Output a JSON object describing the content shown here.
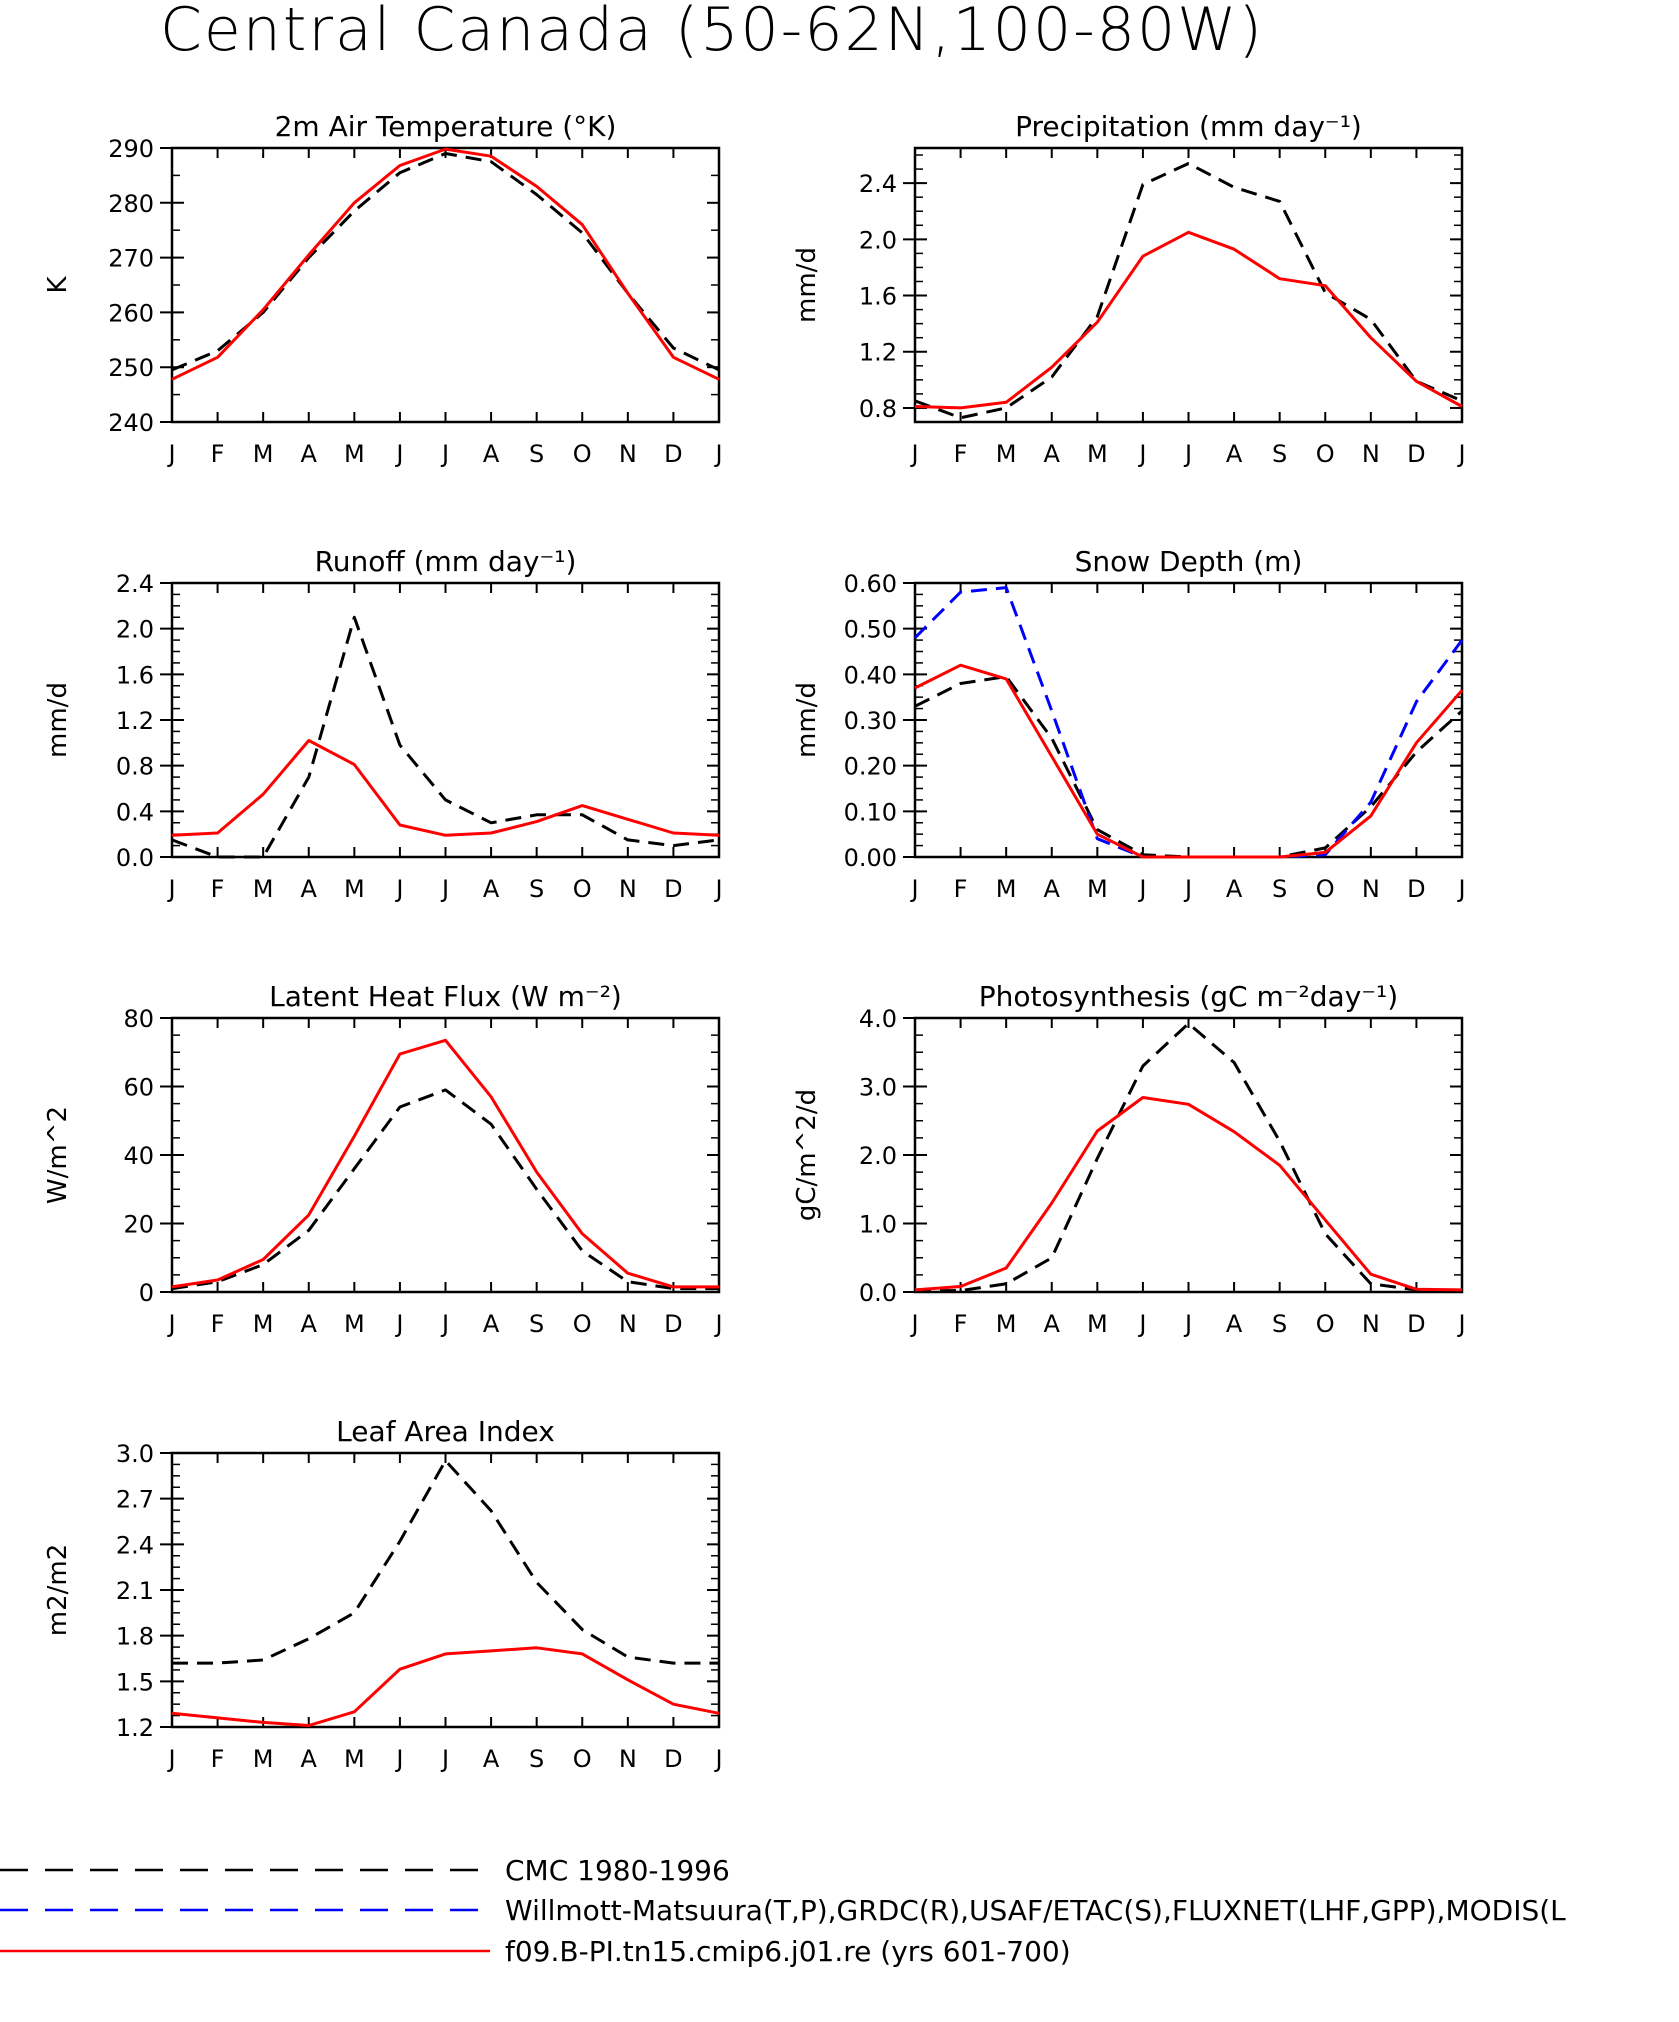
{
  "title": "Central Canada (50-62N,100-80W)",
  "colors": {
    "cmc": "#000000",
    "obs": "#0000ff",
    "model": "#ff0000"
  },
  "legend": [
    {
      "key": "cmc",
      "label": "CMC 1980-1996",
      "style": "dashed",
      "color": "#000000"
    },
    {
      "key": "obs",
      "label": "Willmott-Matsuura(T,P),GRDC(R),USAF/ETAC(S),FLUXNET(LHF,GPP),MODIS(L",
      "style": "dashed",
      "color": "#0000ff"
    },
    {
      "key": "model",
      "label": "f09.B-PI.tn15.cmip6.j01.re (yrs 601-700)",
      "style": "solid",
      "color": "#ff0000"
    }
  ],
  "chart_data": [
    {
      "type": "line",
      "title": "2m Air Temperature (°K)",
      "ylabel": "K",
      "categories": [
        "J",
        "F",
        "M",
        "A",
        "M",
        "J",
        "J",
        "A",
        "S",
        "O",
        "N",
        "D",
        "J"
      ],
      "ylim": [
        240,
        290
      ],
      "yticks": [
        "240",
        "250",
        "260",
        "270",
        "280",
        "290"
      ],
      "yminor": 5,
      "series": [
        {
          "name": "CMC 1980-1996",
          "key": "cmc",
          "values": [
            249.5,
            253.0,
            260.0,
            270.0,
            278.5,
            285.5,
            289.0,
            287.5,
            281.5,
            274.5,
            263.5,
            253.5,
            249.5
          ]
        },
        {
          "name": "f09.B-PI.tn15.cmip6.j01.re (yrs 601-700)",
          "key": "model",
          "values": [
            247.8,
            251.8,
            260.5,
            270.5,
            280.0,
            286.8,
            289.8,
            288.5,
            283.0,
            276.0,
            263.5,
            251.8,
            247.8
          ]
        }
      ]
    },
    {
      "type": "line",
      "title": "Precipitation (mm day⁻¹)",
      "ylabel": "mm/d",
      "categories": [
        "J",
        "F",
        "M",
        "A",
        "M",
        "J",
        "J",
        "A",
        "S",
        "O",
        "N",
        "D",
        "J"
      ],
      "ylim": [
        0.7,
        2.65
      ],
      "yticks": [
        "0.8",
        "1.2",
        "1.6",
        "2.0",
        "2.4"
      ],
      "yminor": 0.1,
      "series": [
        {
          "name": "CMC 1980-1996",
          "key": "cmc",
          "values": [
            0.85,
            0.73,
            0.8,
            1.02,
            1.45,
            2.39,
            2.54,
            2.37,
            2.27,
            1.62,
            1.43,
            0.99,
            0.85
          ]
        },
        {
          "name": "f09.B-PI.tn15.cmip6.j01.re (yrs 601-700)",
          "key": "model",
          "values": [
            0.81,
            0.8,
            0.84,
            1.09,
            1.41,
            1.88,
            2.05,
            1.93,
            1.72,
            1.67,
            1.3,
            0.99,
            0.81
          ]
        }
      ]
    },
    {
      "type": "line",
      "title": "Runoff (mm day⁻¹)",
      "ylabel": "mm/d",
      "categories": [
        "J",
        "F",
        "M",
        "A",
        "M",
        "J",
        "J",
        "A",
        "S",
        "O",
        "N",
        "D",
        "J"
      ],
      "ylim": [
        0.0,
        2.4
      ],
      "yticks": [
        "0.0",
        "0.4",
        "0.8",
        "1.2",
        "1.6",
        "2.0",
        "2.4"
      ],
      "yminor": 0.1,
      "series": [
        {
          "name": "CMC 1980-1996",
          "key": "cmc",
          "values": [
            0.15,
            0.0,
            0.0,
            0.7,
            2.1,
            0.98,
            0.5,
            0.3,
            0.37,
            0.37,
            0.15,
            0.1,
            0.15
          ]
        },
        {
          "name": "f09.B-PI.tn15.cmip6.j01.re (yrs 601-700)",
          "key": "model",
          "values": [
            0.19,
            0.21,
            0.55,
            1.02,
            0.81,
            0.28,
            0.19,
            0.21,
            0.31,
            0.45,
            0.33,
            0.21,
            0.19
          ]
        }
      ]
    },
    {
      "type": "line",
      "title": "Snow Depth (m)",
      "ylabel": "mm/d",
      "categories": [
        "J",
        "F",
        "M",
        "A",
        "M",
        "J",
        "J",
        "A",
        "S",
        "O",
        "N",
        "D",
        "J"
      ],
      "ylim": [
        0.0,
        0.6
      ],
      "yticks": [
        "0.00",
        "0.10",
        "0.20",
        "0.30",
        "0.40",
        "0.50",
        "0.60"
      ],
      "yminor": 0.025,
      "series": [
        {
          "name": "CMC 1980-1996",
          "key": "cmc",
          "values": [
            0.33,
            0.38,
            0.395,
            0.26,
            0.06,
            0.005,
            0.0,
            0.0,
            0.0,
            0.02,
            0.11,
            0.23,
            0.32
          ]
        },
        {
          "name": "Willmott-Matsuura(T,P),GRDC(R),USAF/ETAC(S),FLUXNET(LHF,GPP),MODIS(L",
          "key": "obs",
          "values": [
            0.48,
            0.58,
            0.59,
            0.32,
            0.04,
            0.0,
            0.0,
            0.0,
            0.0,
            0.005,
            0.12,
            0.34,
            0.475
          ]
        },
        {
          "name": "f09.B-PI.tn15.cmip6.j01.re (yrs 601-700)",
          "key": "model",
          "values": [
            0.37,
            0.42,
            0.39,
            0.22,
            0.05,
            0.0,
            0.0,
            0.0,
            0.0,
            0.01,
            0.09,
            0.25,
            0.365
          ]
        }
      ]
    },
    {
      "type": "line",
      "title": "Latent Heat Flux (W m⁻²)",
      "ylabel": "W/m^2",
      "categories": [
        "J",
        "F",
        "M",
        "A",
        "M",
        "J",
        "J",
        "A",
        "S",
        "O",
        "N",
        "D",
        "J"
      ],
      "ylim": [
        0,
        80
      ],
      "yticks": [
        "0",
        "20",
        "40",
        "60",
        "80"
      ],
      "yminor": 5,
      "series": [
        {
          "name": "CMC 1980-1996",
          "key": "cmc",
          "values": [
            1,
            3,
            8,
            18,
            36,
            54,
            59,
            49,
            30,
            12,
            3,
            1,
            1
          ]
        },
        {
          "name": "f09.B-PI.tn15.cmip6.j01.re (yrs 601-700)",
          "key": "model",
          "values": [
            1.5,
            3.5,
            9.5,
            22.5,
            45.5,
            69.5,
            73.5,
            57,
            35,
            17,
            5.5,
            1.5,
            1.5
          ]
        }
      ]
    },
    {
      "type": "line",
      "title": "Photosynthesis (gC m⁻²day⁻¹)",
      "ylabel": "gC/m^2/d",
      "categories": [
        "J",
        "F",
        "M",
        "A",
        "M",
        "J",
        "J",
        "A",
        "S",
        "O",
        "N",
        "D",
        "J"
      ],
      "ylim": [
        0.0,
        4.0
      ],
      "yticks": [
        "0.0",
        "1.0",
        "2.0",
        "3.0",
        "4.0"
      ],
      "yminor": 0.25,
      "series": [
        {
          "name": "CMC 1980-1996",
          "key": "cmc",
          "values": [
            0.02,
            0.02,
            0.12,
            0.5,
            1.95,
            3.3,
            3.92,
            3.35,
            2.2,
            0.85,
            0.12,
            0.03,
            0.02
          ]
        },
        {
          "name": "f09.B-PI.tn15.cmip6.j01.re (yrs 601-700)",
          "key": "model",
          "values": [
            0.03,
            0.08,
            0.35,
            1.3,
            2.35,
            2.84,
            2.74,
            2.34,
            1.85,
            1.05,
            0.26,
            0.04,
            0.03
          ]
        }
      ]
    },
    {
      "type": "line",
      "title": "Leaf Area Index",
      "ylabel": "m2/m2",
      "categories": [
        "J",
        "F",
        "M",
        "A",
        "M",
        "J",
        "J",
        "A",
        "S",
        "O",
        "N",
        "D",
        "J"
      ],
      "ylim": [
        1.2,
        3.0
      ],
      "yticks": [
        "1.2",
        "1.5",
        "1.8",
        "2.1",
        "2.4",
        "2.7",
        "3.0"
      ],
      "yminor": 0.075,
      "series": [
        {
          "name": "CMC 1980-1996",
          "key": "cmc",
          "values": [
            1.62,
            1.62,
            1.64,
            1.78,
            1.95,
            2.42,
            2.95,
            2.62,
            2.15,
            1.84,
            1.66,
            1.62,
            1.62
          ]
        },
        {
          "name": "f09.B-PI.tn15.cmip6.j01.re (yrs 601-700)",
          "key": "model",
          "values": [
            1.29,
            1.26,
            1.23,
            1.21,
            1.3,
            1.58,
            1.68,
            1.7,
            1.72,
            1.68,
            1.51,
            1.35,
            1.29
          ]
        }
      ]
    }
  ]
}
